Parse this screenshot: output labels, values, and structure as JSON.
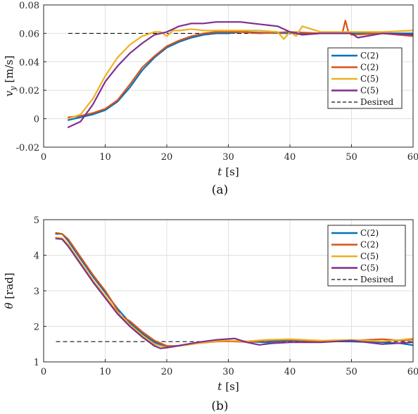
{
  "chart_data": [
    {
      "type": "line",
      "caption": "(a)",
      "xlabel_var": "t",
      "xlabel_unit": "[s]",
      "ylabel_var": "v",
      "ylabel_sub": "y",
      "ylabel_unit": "[m/s]",
      "xlim": [
        0,
        60
      ],
      "ylim": [
        -0.02,
        0.08
      ],
      "xticks": [
        0,
        10,
        20,
        30,
        40,
        50,
        60
      ],
      "yticks": [
        -0.02,
        0,
        0.02,
        0.04,
        0.06,
        0.08
      ],
      "ytick_labels": [
        "-0.02",
        "0",
        "0.02",
        "0.04",
        "0.06",
        "0.08"
      ],
      "grid": true,
      "legend_position": "right",
      "series": [
        {
          "name": "C(2)",
          "color": "#0072BD",
          "x": [
            4,
            6,
            8,
            10,
            12,
            14,
            16,
            18,
            20,
            22,
            24,
            26,
            28,
            30,
            32,
            35,
            40,
            45,
            50,
            55,
            60
          ],
          "y": [
            -0.001,
            0.001,
            0.003,
            0.006,
            0.012,
            0.022,
            0.034,
            0.043,
            0.05,
            0.054,
            0.057,
            0.059,
            0.06,
            0.06,
            0.061,
            0.0605,
            0.06,
            0.06,
            0.06,
            0.06,
            0.06
          ]
        },
        {
          "name": "C(2)",
          "color": "#D95319",
          "x": [
            4,
            6,
            8,
            10,
            12,
            14,
            16,
            18,
            20,
            22,
            24,
            26,
            28,
            30,
            32,
            35,
            40,
            45,
            48.5,
            49,
            49.5,
            50,
            55,
            60
          ],
          "y": [
            0.001,
            0.002,
            0.004,
            0.007,
            0.013,
            0.024,
            0.036,
            0.044,
            0.051,
            0.055,
            0.058,
            0.06,
            0.061,
            0.061,
            0.061,
            0.06,
            0.061,
            0.06,
            0.06,
            0.069,
            0.061,
            0.059,
            0.06,
            0.058
          ]
        },
        {
          "name": "C(5)",
          "color": "#EDB120",
          "x": [
            4,
            6,
            8,
            10,
            12,
            14,
            16,
            18,
            19,
            20,
            21,
            22,
            24,
            26,
            28,
            30,
            32,
            35,
            38,
            39,
            40,
            41,
            42,
            45,
            50,
            55,
            60
          ],
          "y": [
            0.0,
            0.003,
            0.014,
            0.03,
            0.043,
            0.052,
            0.058,
            0.061,
            0.061,
            0.058,
            0.062,
            0.062,
            0.063,
            0.062,
            0.062,
            0.062,
            0.062,
            0.062,
            0.061,
            0.056,
            0.061,
            0.058,
            0.065,
            0.061,
            0.061,
            0.061,
            0.062
          ]
        },
        {
          "name": "C(5)",
          "color": "#7E2F8E",
          "x": [
            4,
            6,
            8,
            10,
            12,
            14,
            16,
            18,
            20,
            22,
            24,
            26,
            28,
            30,
            32,
            34,
            36,
            38,
            40,
            42,
            45,
            50,
            51,
            55,
            60
          ],
          "y": [
            -0.006,
            -0.002,
            0.01,
            0.026,
            0.037,
            0.046,
            0.053,
            0.059,
            0.061,
            0.065,
            0.067,
            0.067,
            0.068,
            0.068,
            0.068,
            0.067,
            0.066,
            0.065,
            0.061,
            0.059,
            0.06,
            0.06,
            0.057,
            0.06,
            0.059
          ]
        }
      ],
      "reference": {
        "name": "Desired",
        "y": 0.06,
        "x": [
          4,
          60
        ]
      }
    },
    {
      "type": "line",
      "caption": "(b)",
      "xlabel_var": "t",
      "xlabel_unit": "[s]",
      "ylabel_var": "θ",
      "ylabel_unit": "[rad]",
      "xlim": [
        0,
        60
      ],
      "ylim": [
        1,
        5
      ],
      "xticks": [
        0,
        10,
        20,
        30,
        40,
        50,
        60
      ],
      "yticks": [
        1,
        2,
        3,
        4,
        5
      ],
      "ytick_labels": [
        "1",
        "2",
        "3",
        "4",
        "5"
      ],
      "grid": true,
      "legend_position": "top-right",
      "series": [
        {
          "name": "C(2)",
          "color": "#0072BD",
          "x": [
            2,
            3,
            4,
            6,
            8,
            10,
            12,
            14,
            16,
            18,
            20,
            22,
            25,
            28,
            30,
            33,
            36,
            40,
            45,
            50,
            55,
            58,
            60
          ],
          "y": [
            4.6,
            4.6,
            4.4,
            3.9,
            3.4,
            2.95,
            2.5,
            2.1,
            1.8,
            1.55,
            1.42,
            1.46,
            1.53,
            1.58,
            1.6,
            1.57,
            1.55,
            1.6,
            1.58,
            1.57,
            1.55,
            1.52,
            1.47
          ]
        },
        {
          "name": "C(2)",
          "color": "#D95319",
          "x": [
            2,
            3,
            4,
            6,
            8,
            10,
            11.5,
            12,
            12.5,
            14,
            16,
            18,
            20,
            22,
            25,
            28,
            30,
            33,
            36,
            40,
            45,
            50,
            55,
            58,
            60
          ],
          "y": [
            4.63,
            4.6,
            4.45,
            3.95,
            3.45,
            3.0,
            2.6,
            2.45,
            2.3,
            2.15,
            1.85,
            1.6,
            1.45,
            1.45,
            1.52,
            1.57,
            1.58,
            1.56,
            1.6,
            1.62,
            1.58,
            1.6,
            1.64,
            1.6,
            1.63
          ]
        },
        {
          "name": "C(5)",
          "color": "#EDB120",
          "x": [
            2,
            3,
            4,
            6,
            8,
            10,
            12,
            14,
            16,
            18,
            20,
            22,
            25,
            28,
            30,
            33,
            36,
            40,
            45,
            50,
            55,
            58,
            60
          ],
          "y": [
            4.5,
            4.48,
            4.3,
            3.8,
            3.3,
            2.85,
            2.4,
            2.05,
            1.75,
            1.5,
            1.4,
            1.45,
            1.52,
            1.58,
            1.6,
            1.58,
            1.62,
            1.64,
            1.6,
            1.62,
            1.58,
            1.62,
            1.66
          ]
        },
        {
          "name": "C(5)",
          "color": "#7E2F8E",
          "x": [
            2,
            3,
            4,
            6,
            8,
            10,
            12,
            14,
            16,
            18,
            19,
            20,
            22,
            25,
            28,
            31,
            33,
            35,
            37,
            40,
            45,
            50,
            55,
            60
          ],
          "y": [
            4.47,
            4.45,
            4.25,
            3.75,
            3.25,
            2.8,
            2.35,
            2.0,
            1.7,
            1.45,
            1.38,
            1.4,
            1.46,
            1.55,
            1.62,
            1.66,
            1.55,
            1.48,
            1.52,
            1.55,
            1.55,
            1.6,
            1.5,
            1.55
          ]
        }
      ],
      "reference": {
        "name": "Desired",
        "y": 1.5708,
        "x": [
          2,
          60
        ]
      }
    }
  ]
}
